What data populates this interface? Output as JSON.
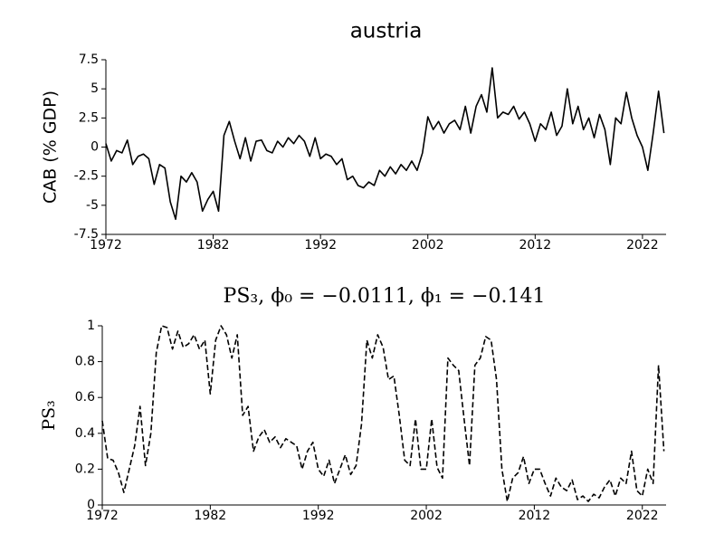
{
  "chart_data": [
    {
      "type": "line",
      "title": "austria",
      "ylabel": "CAB (% GDP)",
      "color": "#000000",
      "linestyle": "solid",
      "x": [
        1972,
        1972.5,
        1973,
        1973.5,
        1974,
        1974.5,
        1975,
        1975.5,
        1976,
        1976.5,
        1977,
        1977.5,
        1978,
        1978.5,
        1979,
        1979.5,
        1980,
        1980.5,
        1981,
        1981.5,
        1982,
        1982.5,
        1983,
        1983.5,
        1984,
        1984.5,
        1985,
        1985.5,
        1986,
        1986.5,
        1987,
        1987.5,
        1988,
        1988.5,
        1989,
        1989.5,
        1990,
        1990.5,
        1991,
        1991.5,
        1992,
        1992.5,
        1993,
        1993.5,
        1994,
        1994.5,
        1995,
        1995.5,
        1996,
        1996.5,
        1997,
        1997.5,
        1998,
        1998.5,
        1999,
        1999.5,
        2000,
        2000.5,
        2001,
        2001.5,
        2002,
        2002.5,
        2003,
        2003.5,
        2004,
        2004.5,
        2005,
        2005.5,
        2006,
        2006.5,
        2007,
        2007.5,
        2008,
        2008.5,
        2009,
        2009.5,
        2010,
        2010.5,
        2011,
        2011.5,
        2012,
        2012.5,
        2013,
        2013.5,
        2014,
        2014.5,
        2015,
        2015.5,
        2016,
        2016.5,
        2017,
        2017.5,
        2018,
        2018.5,
        2019,
        2019.5,
        2020,
        2020.5,
        2021,
        2021.5,
        2022,
        2022.5,
        2023,
        2023.5,
        2024
      ],
      "values": [
        0.3,
        -1.2,
        -0.3,
        -0.5,
        0.6,
        -1.5,
        -0.8,
        -0.6,
        -1.0,
        -3.2,
        -1.5,
        -1.8,
        -4.7,
        -6.2,
        -2.5,
        -3.0,
        -2.2,
        -3.0,
        -5.5,
        -4.5,
        -3.8,
        -5.5,
        1.0,
        2.2,
        0.5,
        -1.0,
        0.8,
        -1.2,
        0.5,
        0.6,
        -0.3,
        -0.5,
        0.5,
        0.0,
        0.8,
        0.3,
        1.0,
        0.5,
        -0.8,
        0.8,
        -1.0,
        -0.6,
        -0.8,
        -1.5,
        -1.0,
        -2.8,
        -2.5,
        -3.3,
        -3.5,
        -3.0,
        -3.3,
        -2.0,
        -2.5,
        -1.7,
        -2.3,
        -1.5,
        -2.0,
        -1.2,
        -2.0,
        -0.5,
        2.6,
        1.5,
        2.2,
        1.2,
        2.0,
        2.3,
        1.5,
        3.5,
        1.2,
        3.5,
        4.5,
        3.0,
        6.8,
        2.5,
        3.0,
        2.8,
        3.5,
        2.4,
        3.0,
        2.0,
        0.5,
        2.0,
        1.5,
        3.0,
        1.0,
        1.8,
        5.0,
        2.0,
        3.5,
        1.5,
        2.5,
        0.8,
        2.8,
        1.5,
        -1.5,
        2.5,
        2.0,
        4.7,
        2.5,
        1.0,
        0.0,
        -2.0,
        1.2,
        4.8,
        1.2
      ],
      "xlim": [
        1972,
        2024.2
      ],
      "xticks": [
        1972,
        1982,
        1992,
        2002,
        2012,
        2022
      ],
      "ylim": [
        -7.5,
        7.5
      ],
      "yticks": [
        -7.5,
        -5,
        -2.5,
        0,
        2.5,
        5,
        7.5
      ]
    },
    {
      "type": "line",
      "title": "PS₃, ϕ₀ = −0.0111, ϕ₁ = −0.141",
      "ylabel": "PS₃",
      "color": "#000000",
      "linestyle": "dashed",
      "x": [
        1972,
        1972.5,
        1973,
        1973.5,
        1974,
        1974.5,
        1975,
        1975.5,
        1976,
        1976.5,
        1977,
        1977.5,
        1978,
        1978.5,
        1979,
        1979.5,
        1980,
        1980.5,
        1981,
        1981.5,
        1982,
        1982.5,
        1983,
        1983.5,
        1984,
        1984.5,
        1985,
        1985.5,
        1986,
        1986.5,
        1987,
        1987.5,
        1988,
        1988.5,
        1989,
        1989.5,
        1990,
        1990.5,
        1991,
        1991.5,
        1992,
        1992.5,
        1993,
        1993.5,
        1994,
        1994.5,
        1995,
        1995.5,
        1996,
        1996.5,
        1997,
        1997.5,
        1998,
        1998.5,
        1999,
        1999.5,
        2000,
        2000.5,
        2001,
        2001.5,
        2002,
        2002.5,
        2003,
        2003.5,
        2004,
        2004.5,
        2005,
        2005.5,
        2006,
        2006.5,
        2007,
        2007.5,
        2008,
        2008.5,
        2009,
        2009.5,
        2010,
        2010.5,
        2011,
        2011.5,
        2012,
        2012.5,
        2013,
        2013.5,
        2014,
        2014.5,
        2015,
        2015.5,
        2016,
        2016.5,
        2017,
        2017.5,
        2018,
        2018.5,
        2019,
        2019.5,
        2020,
        2020.5,
        2021,
        2021.5,
        2022,
        2022.5,
        2023,
        2023.5,
        2024
      ],
      "values": [
        0.47,
        0.26,
        0.25,
        0.18,
        0.07,
        0.2,
        0.33,
        0.55,
        0.22,
        0.4,
        0.85,
        1.0,
        0.99,
        0.87,
        0.97,
        0.88,
        0.9,
        0.95,
        0.87,
        0.92,
        0.62,
        0.92,
        1.0,
        0.95,
        0.82,
        0.95,
        0.5,
        0.55,
        0.3,
        0.38,
        0.42,
        0.35,
        0.38,
        0.32,
        0.37,
        0.35,
        0.33,
        0.2,
        0.3,
        0.35,
        0.2,
        0.16,
        0.25,
        0.12,
        0.2,
        0.28,
        0.17,
        0.22,
        0.45,
        0.92,
        0.82,
        0.95,
        0.88,
        0.7,
        0.72,
        0.5,
        0.25,
        0.22,
        0.48,
        0.2,
        0.2,
        0.48,
        0.21,
        0.15,
        0.82,
        0.78,
        0.75,
        0.48,
        0.22,
        0.78,
        0.82,
        0.94,
        0.92,
        0.7,
        0.2,
        0.02,
        0.15,
        0.18,
        0.27,
        0.12,
        0.2,
        0.2,
        0.12,
        0.05,
        0.15,
        0.1,
        0.08,
        0.14,
        0.03,
        0.05,
        0.02,
        0.06,
        0.04,
        0.1,
        0.14,
        0.05,
        0.15,
        0.12,
        0.3,
        0.08,
        0.05,
        0.2,
        0.12,
        0.78,
        0.3
      ],
      "xlim": [
        1972,
        2024.2
      ],
      "xticks": [
        1972,
        1982,
        1992,
        2002,
        2012,
        2022
      ],
      "ylim": [
        0,
        1
      ],
      "yticks": [
        0,
        0.2,
        0.4,
        0.6,
        0.8,
        1
      ]
    }
  ]
}
